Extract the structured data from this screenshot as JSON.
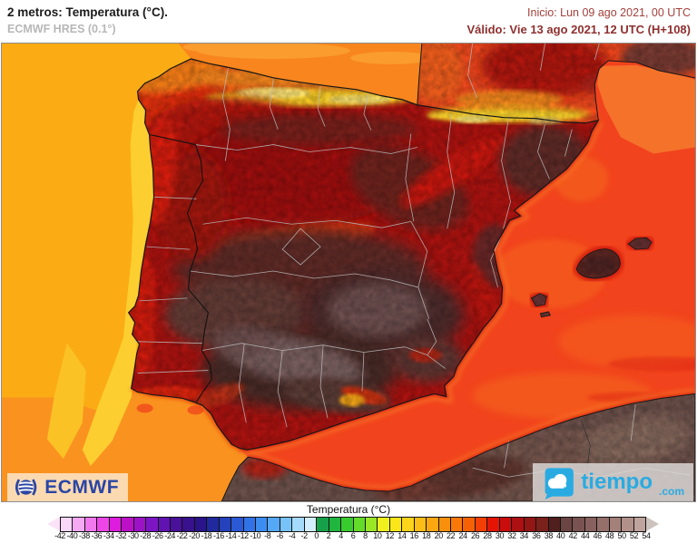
{
  "header": {
    "title": "2 metros: Temperatura (°C).",
    "subtitle": "ECMWF HRES (0.1°)",
    "init_label": "Inicio: Lun 09 ago 2021, 00 UTC",
    "valid_label": "Válido: Vie 13 ago 2021, 12 UTC (H+108)"
  },
  "logos": {
    "ecmwf": "ECMWF",
    "tiempo": "tiempo",
    "tiempo_suffix": ".com"
  },
  "legend": {
    "title": "Temperatura (°C)",
    "unit": "°C",
    "min": -42,
    "max": 54,
    "step": 2,
    "labels": [
      "-42",
      "-40",
      "-38",
      "-36",
      "-34",
      "-32",
      "-30",
      "-28",
      "-26",
      "-24",
      "-22",
      "-20",
      "-18",
      "-16",
      "-14",
      "-12",
      "-10",
      "-8",
      "-6",
      "-4",
      "-2",
      "0",
      "2",
      "4",
      "6",
      "8",
      "10",
      "12",
      "14",
      "16",
      "18",
      "20",
      "22",
      "24",
      "26",
      "28",
      "30",
      "32",
      "34",
      "36",
      "38",
      "40",
      "42",
      "44",
      "46",
      "48",
      "50",
      "52",
      "54"
    ],
    "cell_colors": [
      "#F9D7F9",
      "#F5A9F3",
      "#F278EE",
      "#EC46E7",
      "#DE1CDE",
      "#BC10C6",
      "#9D12C6",
      "#7D15C4",
      "#6013B1",
      "#4A119B",
      "#39118D",
      "#2A1489",
      "#202A9E",
      "#2541BC",
      "#2B58D5",
      "#3172E7",
      "#3C8DF1",
      "#55A8F6",
      "#78C2FA",
      "#A5DAFC",
      "#D2EEFE",
      "#16A04A",
      "#1FB53E",
      "#38CB2E",
      "#63DB28",
      "#9AE726",
      "#EFF01D",
      "#FBE61A",
      "#FCD41A",
      "#FBBD16",
      "#FAA712",
      "#F9900D",
      "#F87909",
      "#F66106",
      "#F23F05",
      "#E41505",
      "#C90C0C",
      "#AC1013",
      "#931714",
      "#7A211B",
      "#50201F",
      "#6A4543",
      "#795350",
      "#87615D",
      "#95706B",
      "#A3807A",
      "#B1908A",
      "#BFA49D"
    ],
    "left_arrow_color": "#FAE3F8",
    "right_arrow_color": "#CCC3BD"
  },
  "colors": {
    "header_accent": "#A3403C",
    "subtitle_gray": "#B7B7B7",
    "sea_atlantic": "#FBAC15",
    "sea_biscay": "#F8851D",
    "sea_mediterranean": "#F1431D",
    "sea_coastal_yellow": "#FCCE30",
    "land_hot_dark": "#4E2C2A",
    "land_hottest_gray": "#7A5F5E",
    "ecmwf_blue": "#2946A5",
    "tiempo_blue": "#29ABE2"
  }
}
